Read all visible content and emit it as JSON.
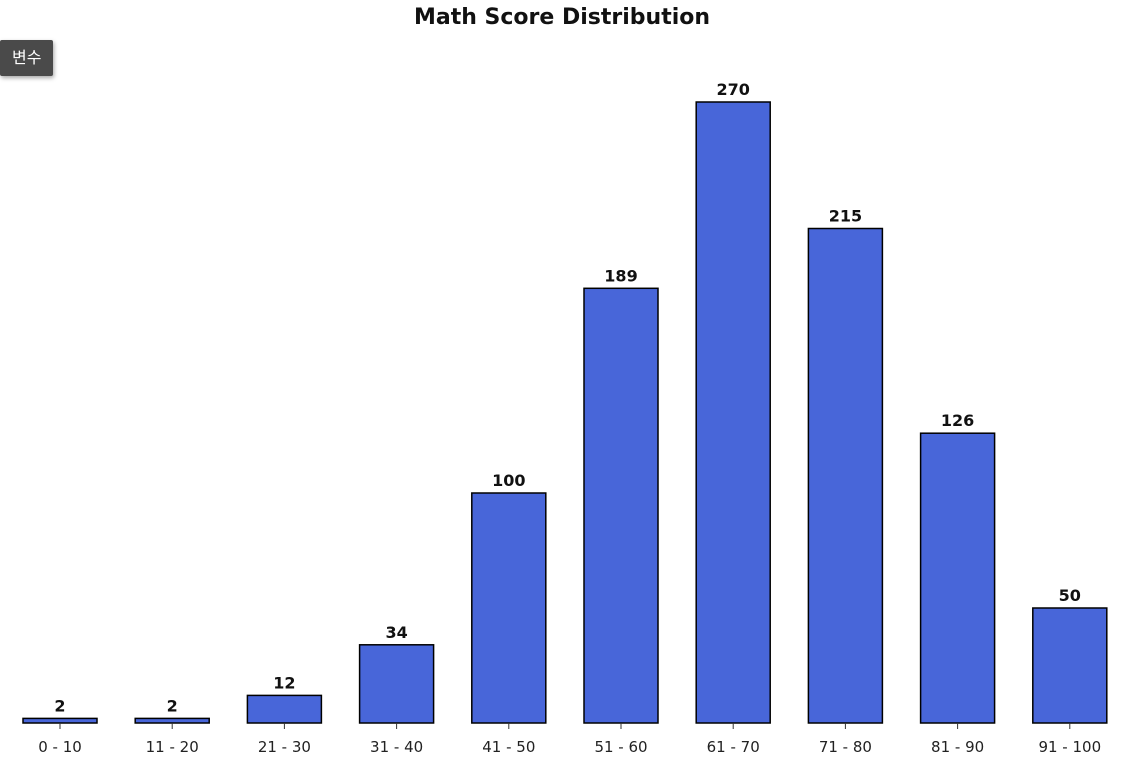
{
  "variable_button": {
    "label": "변수"
  },
  "chart_data": {
    "type": "bar",
    "title": "Math Score Distribution",
    "xlabel": "",
    "ylabel": "",
    "categories": [
      "0 - 10",
      "11 - 20",
      "21 - 30",
      "31 - 40",
      "41 - 50",
      "51 - 60",
      "61 - 70",
      "71 - 80",
      "81 - 90",
      "91 - 100"
    ],
    "values": [
      2,
      2,
      12,
      34,
      100,
      189,
      270,
      215,
      126,
      50
    ],
    "ylim": [
      0,
      270
    ],
    "grid": false,
    "data_labels": true,
    "bar_color": "#4866d9",
    "bar_edge_color": "#000000"
  }
}
